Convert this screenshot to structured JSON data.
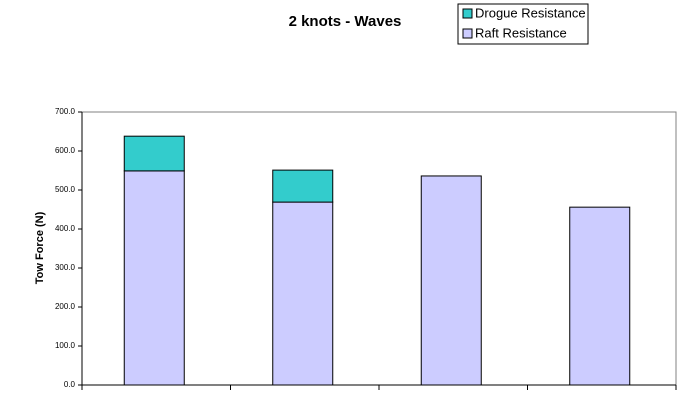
{
  "chart_data": {
    "type": "stacked_bar",
    "title": "2 knots - Waves",
    "y_label": "Tow Force (N)",
    "categories": [
      null,
      null,
      null,
      null
    ],
    "series": [
      {
        "name": "Raft Resistance",
        "color": "#ccccff",
        "values": [
          549,
          469,
          536,
          456
        ]
      },
      {
        "name": "Drogue Resistance",
        "color": "#33cccc",
        "values": [
          89,
          82,
          0,
          0
        ]
      }
    ],
    "ylim": [
      0,
      700
    ],
    "yticks": [
      {
        "value": 0,
        "label": "0.0"
      },
      {
        "value": 100,
        "label": "100.0"
      },
      {
        "value": 200,
        "label": "200.0"
      },
      {
        "value": 300,
        "label": "300.0"
      },
      {
        "value": 400,
        "label": "400.0"
      },
      {
        "value": 500,
        "label": "500.0"
      },
      {
        "value": 600,
        "label": "600.0"
      },
      {
        "value": 700,
        "label": "700.0"
      }
    ],
    "legend": "top-right"
  }
}
